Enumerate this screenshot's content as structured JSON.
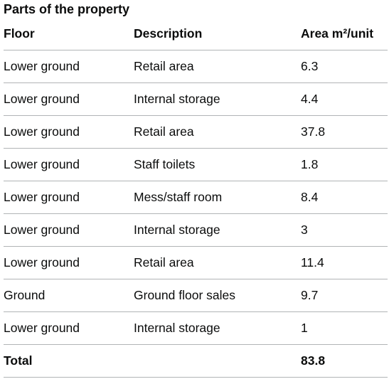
{
  "caption": "Parts of the property",
  "headers": {
    "floor": "Floor",
    "description": "Description",
    "area": "Area m²/unit"
  },
  "rows": [
    {
      "floor": "Lower ground",
      "description": "Retail area",
      "area": "6.3"
    },
    {
      "floor": "Lower ground",
      "description": "Internal storage",
      "area": "4.4"
    },
    {
      "floor": "Lower ground",
      "description": "Retail area",
      "area": "37.8"
    },
    {
      "floor": "Lower ground",
      "description": "Staff toilets",
      "area": "1.8"
    },
    {
      "floor": "Lower ground",
      "description": "Mess/staff room",
      "area": "8.4"
    },
    {
      "floor": "Lower ground",
      "description": "Internal storage",
      "area": "3"
    },
    {
      "floor": "Lower ground",
      "description": "Retail area",
      "area": "11.4"
    },
    {
      "floor": "Ground",
      "description": "Ground floor sales",
      "area": "9.7"
    },
    {
      "floor": "Lower ground",
      "description": "Internal storage",
      "area": "1"
    }
  ],
  "total": {
    "label": "Total",
    "description": "",
    "area": "83.8"
  }
}
